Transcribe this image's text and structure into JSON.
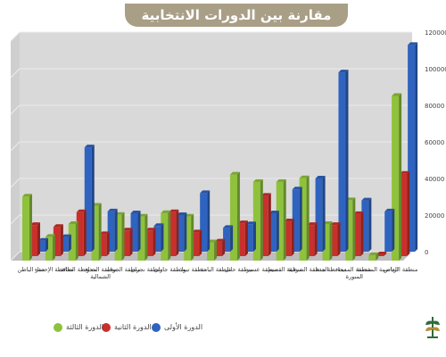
{
  "chart_data": {
    "type": "bar",
    "title": "مقارنة بين الدورات الانتخابية",
    "categories": [
      "منطقة الرياض",
      "العاصمة المقدسة",
      "منطقة المدينة المنورة",
      "محافظة جدة",
      "المنطقة الشرقية",
      "منطقة القصيم",
      "منطقة عسير",
      "منطقة حائل",
      "منطقة الباحة",
      "منطقة تبوك",
      "منطقة جازان",
      "منطقة نجران",
      "منطقة الجوف",
      "منطقة الحدود الشمالية",
      "محافظة الطائف",
      "محافظة الإحساء",
      "حفر الباطن"
    ],
    "series": [
      {
        "name": "الدورة الأولى",
        "color": "#2f63c0",
        "values": [
          113000,
          22000,
          28000,
          98000,
          40000,
          34000,
          21000,
          15000,
          13000,
          32000,
          20000,
          14000,
          21000,
          22000,
          57000,
          8000,
          6000
        ]
      },
      {
        "name": "الدورة الثانية",
        "color": "#c9302c",
        "values": [
          45000,
          1000,
          23000,
          17000,
          17000,
          19000,
          33000,
          18000,
          8000,
          13000,
          24000,
          14000,
          14000,
          12000,
          24000,
          16000,
          17000
        ]
      },
      {
        "name": "الدورة الثالثة",
        "color": "#8fc23c",
        "values": [
          90000,
          3000,
          33000,
          20000,
          45000,
          43000,
          43000,
          47000,
          10000,
          24000,
          26000,
          24000,
          25000,
          30000,
          20000,
          13000,
          35000
        ]
      }
    ],
    "ylim": [
      0,
      120000
    ],
    "yticks": [
      0,
      20000,
      40000,
      60000,
      80000,
      100000,
      120000
    ],
    "legend_position": "bottom"
  }
}
